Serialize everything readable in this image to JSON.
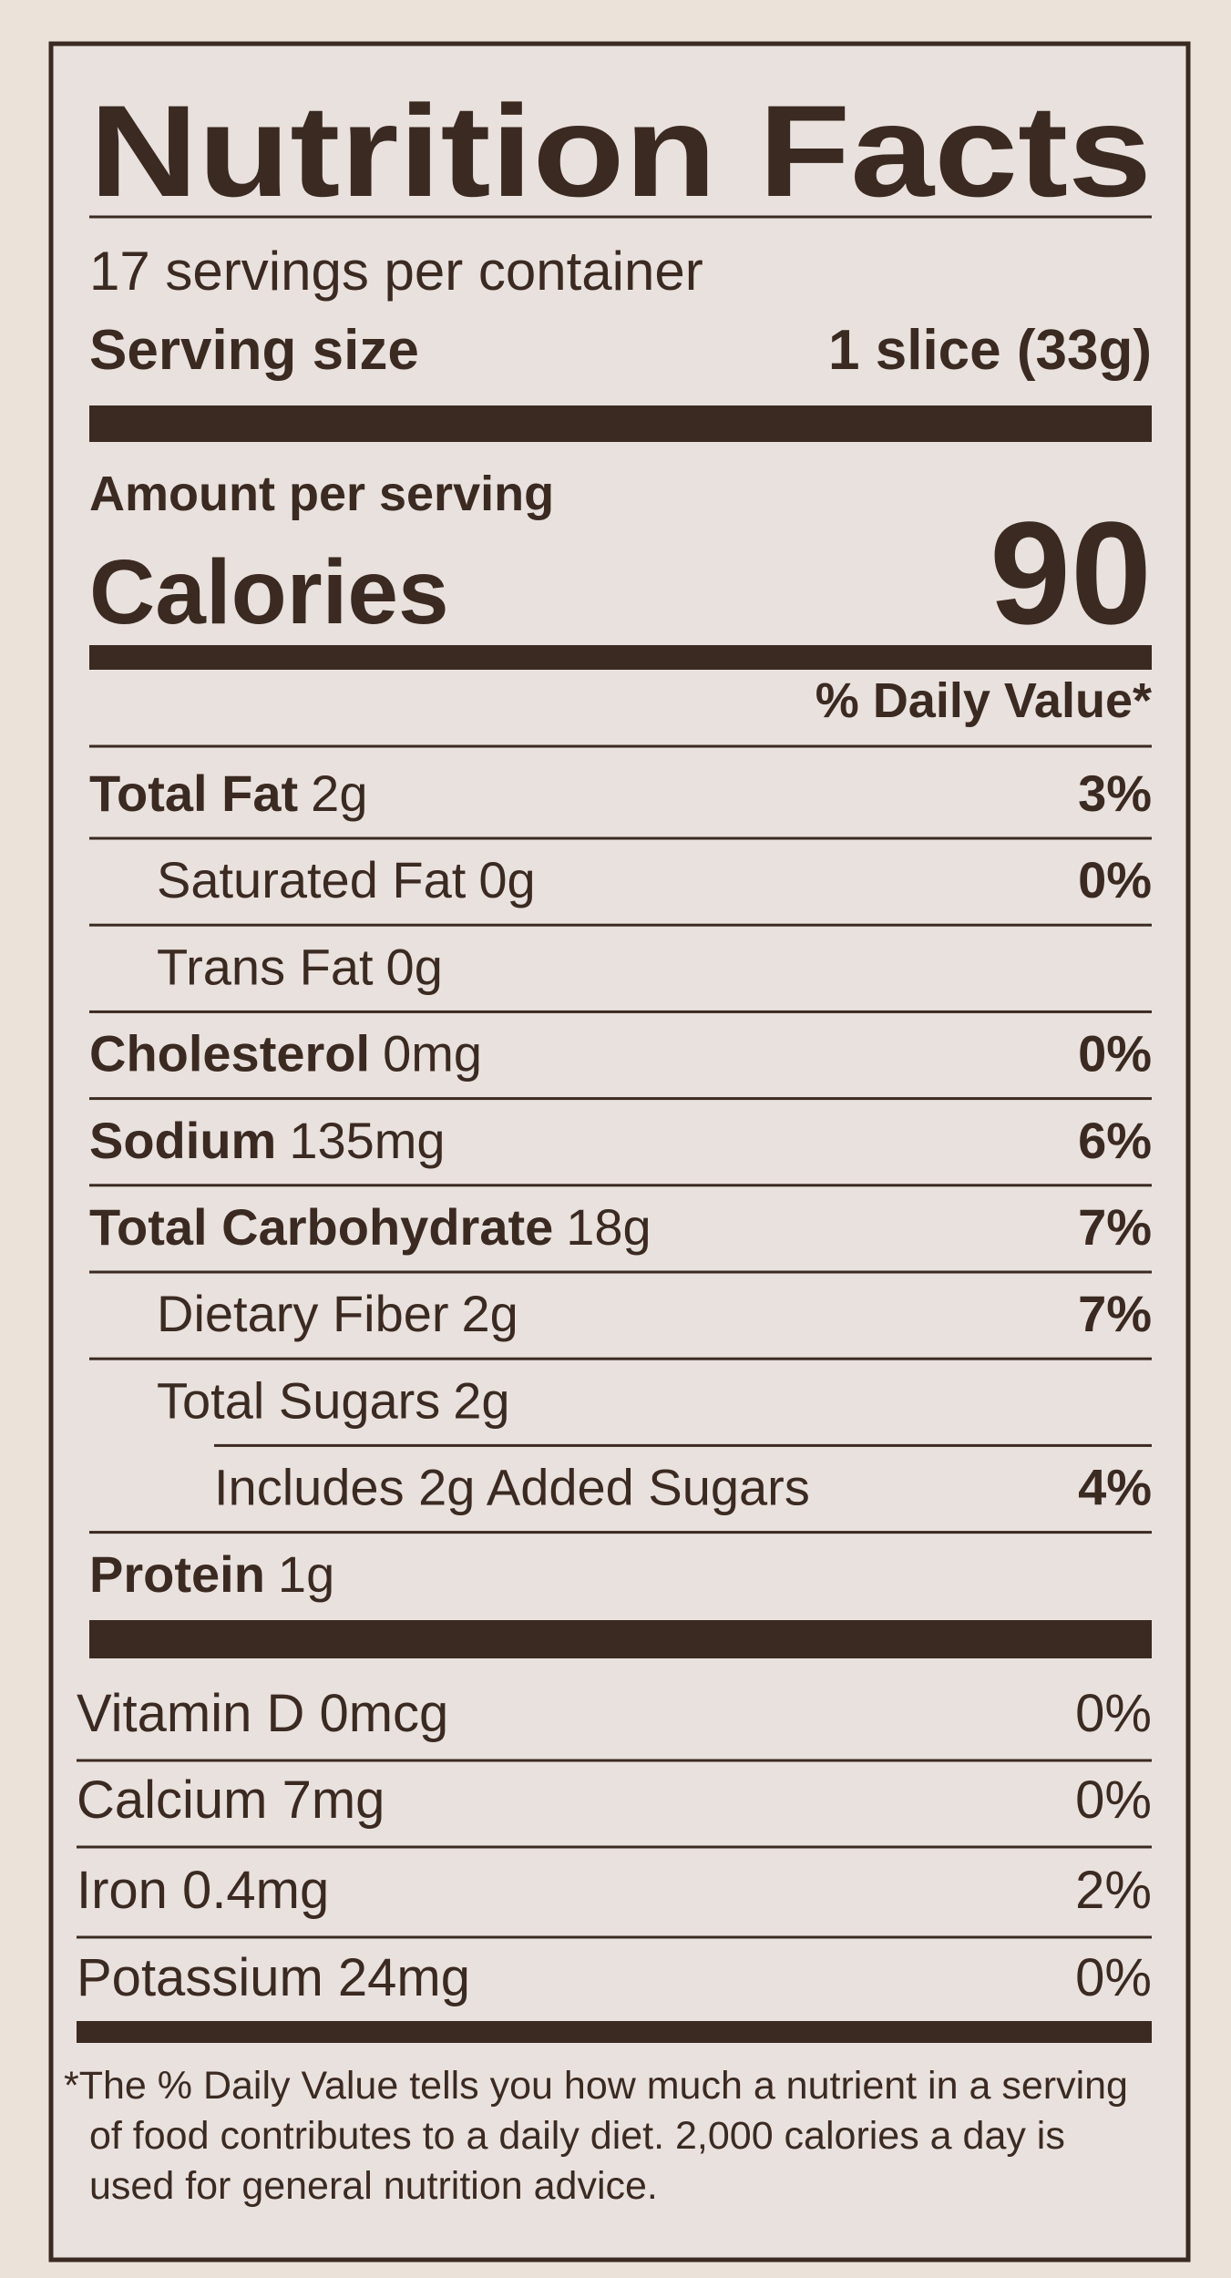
{
  "title": "Nutrition Facts",
  "servings": "17 servings per container",
  "serving_size": {
    "label": "Serving size",
    "value": "1 slice (33g)"
  },
  "amount_per_serving": "Amount per serving",
  "calories": {
    "label": "Calories",
    "value": 90
  },
  "daily_value_header": "% Daily Value*",
  "nutrients": [
    {
      "name": "Total Fat",
      "amount": "2g",
      "dv": "3%"
    },
    {
      "name": "Saturated Fat",
      "amount": "0g",
      "dv": "0%"
    },
    {
      "name": "Trans Fat",
      "amount": "0g"
    },
    {
      "name": "Cholesterol",
      "amount": "0mg",
      "dv": "0%"
    },
    {
      "name": "Sodium",
      "amount": "135mg",
      "dv": "6%"
    },
    {
      "name": "Total Carbohydrate",
      "amount": "18g",
      "dv": "7%"
    },
    {
      "name": "Dietary Fiber",
      "amount": "2g",
      "dv": "7%"
    },
    {
      "name": "Total Sugars",
      "amount": "2g"
    },
    {
      "name": "Includes 2g Added Sugars",
      "dv": "4%"
    },
    {
      "name": "Protein",
      "amount": "1g"
    }
  ],
  "vitamins": [
    {
      "name": "Vitamin D 0mcg",
      "dv": "0%"
    },
    {
      "name": "Calcium 7mg",
      "dv": "0%"
    },
    {
      "name": "Iron 0.4mg",
      "dv": "2%"
    },
    {
      "name": "Potassium 24mg",
      "dv": "0%"
    }
  ],
  "footnote": "*The % Daily Value tells you how much a nutrient in a serving of food contributes to a daily diet. 2,000 calories a day is used for general nutrition advice."
}
